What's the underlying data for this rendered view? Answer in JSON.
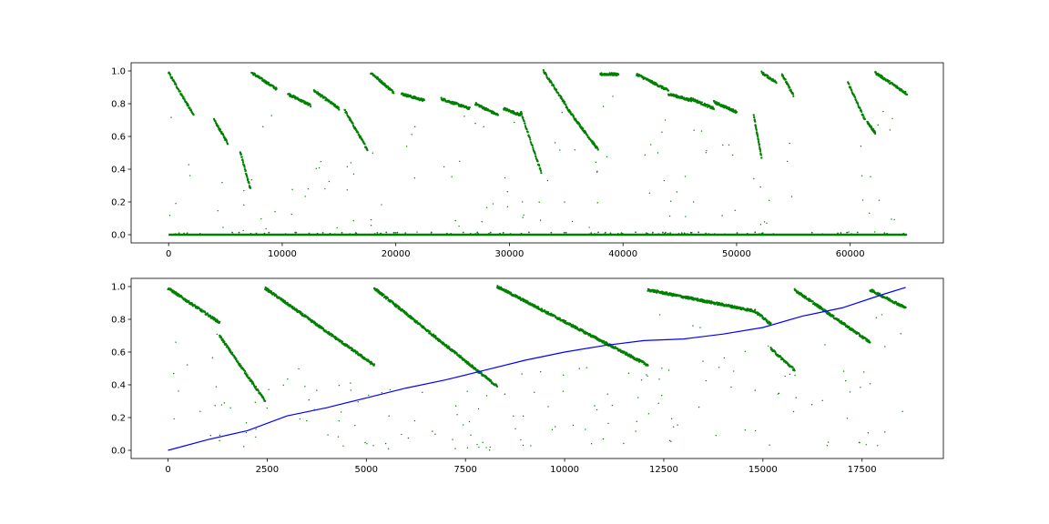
{
  "chart_data": [
    {
      "type": "scatter",
      "title": "",
      "xlabel": "",
      "ylabel": "",
      "xlim": [
        -3300,
        68200
      ],
      "ylim": [
        -0.05,
        1.05
      ],
      "xticks": [
        0,
        10000,
        20000,
        30000,
        40000,
        50000,
        60000
      ],
      "xtick_labels": [
        "0",
        "10000",
        "20000",
        "30000",
        "40000",
        "50000",
        "60000"
      ],
      "yticks": [
        0.0,
        0.2,
        0.4,
        0.6,
        0.8,
        1.0
      ],
      "ytick_labels": [
        "0.0",
        "0.2",
        "0.4",
        "0.6",
        "0.8",
        "1.0"
      ],
      "grid": false,
      "series": [
        {
          "color": "#008000",
          "marker": "dot",
          "segments": [
            {
              "x": [
                0,
                2200
              ],
              "y": [
                0.99,
                0.73
              ]
            },
            {
              "x": [
                4000,
                5200
              ],
              "y": [
                0.7,
                0.56
              ]
            },
            {
              "x": [
                6300,
                7200
              ],
              "y": [
                0.51,
                0.28
              ]
            },
            {
              "x": [
                7300,
                9500
              ],
              "y": [
                0.99,
                0.89
              ]
            },
            {
              "x": [
                10500,
                12500
              ],
              "y": [
                0.86,
                0.79
              ]
            },
            {
              "x": [
                12800,
                15000
              ],
              "y": [
                0.88,
                0.77
              ]
            },
            {
              "x": [
                15500,
                17500
              ],
              "y": [
                0.76,
                0.52
              ]
            },
            {
              "x": [
                17800,
                19800
              ],
              "y": [
                0.99,
                0.87
              ]
            },
            {
              "x": [
                20500,
                22500
              ],
              "y": [
                0.86,
                0.82
              ]
            },
            {
              "x": [
                24000,
                26500
              ],
              "y": [
                0.83,
                0.77
              ]
            },
            {
              "x": [
                27000,
                29000
              ],
              "y": [
                0.8,
                0.73
              ]
            },
            {
              "x": [
                29500,
                31000
              ],
              "y": [
                0.77,
                0.73
              ]
            },
            {
              "x": [
                31000,
                32800
              ],
              "y": [
                0.75,
                0.38
              ]
            },
            {
              "x": [
                33000,
                35000
              ],
              "y": [
                1.0,
                0.79
              ]
            },
            {
              "x": [
                35000,
                37800
              ],
              "y": [
                0.78,
                0.52
              ]
            },
            {
              "x": [
                38000,
                39600
              ],
              "y": [
                0.98,
                0.98
              ]
            },
            {
              "x": [
                41200,
                44000
              ],
              "y": [
                0.98,
                0.88
              ]
            },
            {
              "x": [
                44000,
                46000
              ],
              "y": [
                0.86,
                0.82
              ]
            },
            {
              "x": [
                46000,
                48000
              ],
              "y": [
                0.83,
                0.77
              ]
            },
            {
              "x": [
                48000,
                50000
              ],
              "y": [
                0.81,
                0.75
              ]
            },
            {
              "x": [
                51500,
                52200
              ],
              "y": [
                0.73,
                0.47
              ]
            },
            {
              "x": [
                52200,
                53500
              ],
              "y": [
                0.99,
                0.93
              ]
            },
            {
              "x": [
                54000,
                55000
              ],
              "y": [
                0.98,
                0.85
              ]
            },
            {
              "x": [
                59800,
                61300
              ],
              "y": [
                0.93,
                0.7
              ]
            },
            {
              "x": [
                61500,
                62200
              ],
              "y": [
                0.69,
                0.62
              ]
            },
            {
              "x": [
                62200,
                65000
              ],
              "y": [
                0.99,
                0.86
              ]
            }
          ],
          "baseline": {
            "x": [
              0,
              65000
            ],
            "y": 0.0
          }
        }
      ]
    },
    {
      "type": "scatter",
      "title": "",
      "xlabel": "",
      "ylabel": "",
      "xlim": [
        -930,
        19550
      ],
      "ylim": [
        -0.05,
        1.05
      ],
      "xticks": [
        0,
        2500,
        5000,
        7500,
        10000,
        12500,
        15000,
        17500
      ],
      "xtick_labels": [
        "0",
        "2500",
        "5000",
        "7500",
        "10000",
        "12500",
        "15000",
        "17500"
      ],
      "yticks": [
        0.0,
        0.2,
        0.4,
        0.6,
        0.8,
        1.0
      ],
      "ytick_labels": [
        "0.0",
        "0.2",
        "0.4",
        "0.6",
        "0.8",
        "1.0"
      ],
      "grid": false,
      "series": [
        {
          "color": "#008000",
          "marker": "dot",
          "segments": [
            {
              "x": [
                0,
                1300
              ],
              "y": [
                0.99,
                0.78
              ]
            },
            {
              "x": [
                1300,
                2450
              ],
              "y": [
                0.7,
                0.3
              ]
            },
            {
              "x": [
                2450,
                5200
              ],
              "y": [
                0.99,
                0.52
              ]
            },
            {
              "x": [
                5200,
                8300
              ],
              "y": [
                0.99,
                0.39
              ]
            },
            {
              "x": [
                8300,
                12100
              ],
              "y": [
                1.0,
                0.52
              ]
            },
            {
              "x": [
                12100,
                14800
              ],
              "y": [
                0.98,
                0.85
              ]
            },
            {
              "x": [
                14800,
                15200
              ],
              "y": [
                0.85,
                0.77
              ]
            },
            {
              "x": [
                15200,
                15800
              ],
              "y": [
                0.62,
                0.49
              ]
            },
            {
              "x": [
                15800,
                17700
              ],
              "y": [
                0.98,
                0.66
              ]
            },
            {
              "x": [
                17700,
                18600
              ],
              "y": [
                0.98,
                0.87
              ]
            }
          ]
        },
        {
          "color": "#0000ff",
          "marker": "line",
          "x": [
            0,
            1000,
            2000,
            3000,
            4000,
            5000,
            6000,
            7000,
            8000,
            9000,
            10000,
            11000,
            12000,
            13000,
            14000,
            15000,
            16000,
            17000,
            18000,
            18600
          ],
          "y": [
            0.0,
            0.065,
            0.12,
            0.21,
            0.26,
            0.32,
            0.38,
            0.43,
            0.49,
            0.55,
            0.6,
            0.64,
            0.67,
            0.68,
            0.71,
            0.75,
            0.82,
            0.87,
            0.95,
            0.995
          ]
        }
      ]
    }
  ]
}
